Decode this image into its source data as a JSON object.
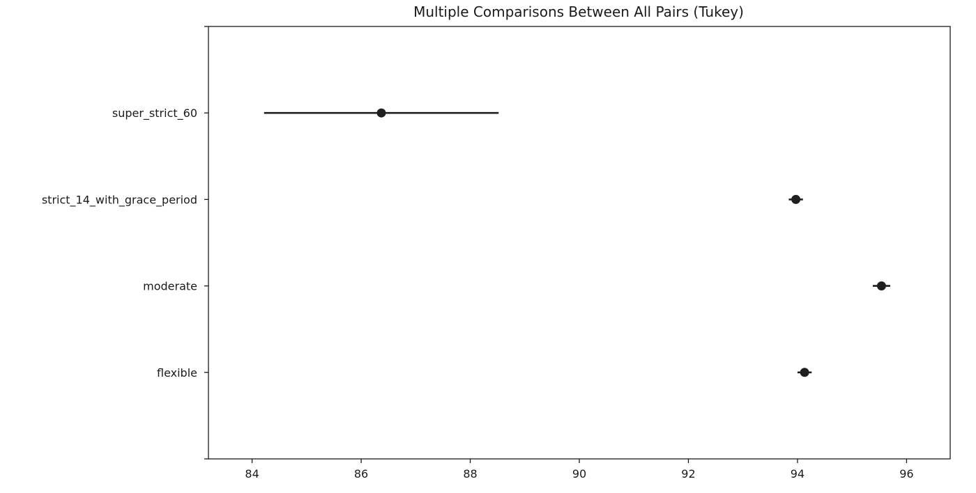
{
  "chart_data": {
    "type": "scatter",
    "title": "Multiple Comparisons Between All Pairs (Tukey)",
    "xlabel": "",
    "ylabel": "",
    "xlim": [
      83.2,
      96.8
    ],
    "x_ticks": [
      84,
      86,
      88,
      90,
      92,
      94,
      96
    ],
    "x_tick_labels": [
      "84",
      "86",
      "88",
      "90",
      "92",
      "94",
      "96"
    ],
    "grid": false,
    "legend": "none",
    "categories": [
      "super_strict_60",
      "strict_14_with_grace_period",
      "moderate",
      "flexible"
    ],
    "series": [
      {
        "means": [
          86.37,
          93.97,
          95.54,
          94.13
        ],
        "lower": [
          84.22,
          93.84,
          95.38,
          94.0
        ],
        "upper": [
          88.52,
          94.1,
          95.7,
          94.26
        ]
      }
    ],
    "colors": {
      "marker": "#1f1f1f",
      "frame": "#1a1a1a"
    }
  }
}
